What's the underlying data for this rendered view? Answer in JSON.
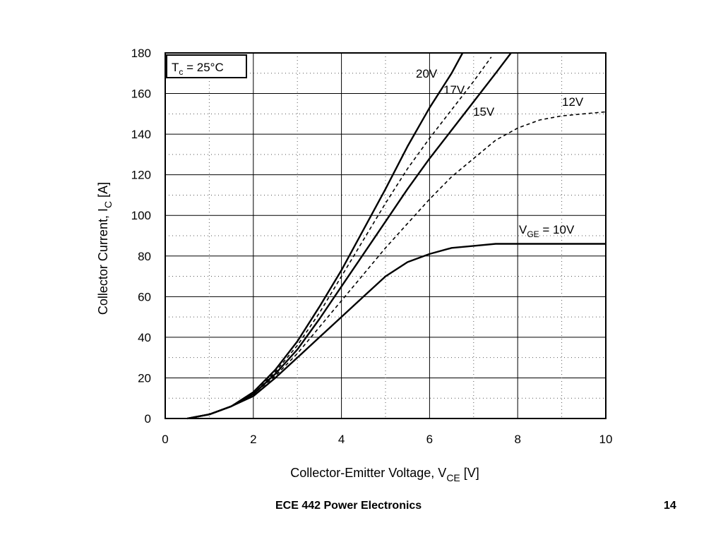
{
  "chart_data": {
    "type": "line",
    "xlabel": "Collector-Emitter Voltage, V",
    "xlabel_sub": "CE",
    "xlabel_unit": " [V]",
    "ylabel": "Collector Current, I",
    "ylabel_sub": "C",
    "ylabel_unit": " [A]",
    "xlim": [
      0,
      10
    ],
    "ylim": [
      0,
      180
    ],
    "xticks": [
      "0",
      "2",
      "4",
      "6",
      "8",
      "10"
    ],
    "yticks": [
      "0",
      "20",
      "40",
      "60",
      "80",
      "100",
      "120",
      "140",
      "160",
      "180"
    ],
    "grid": true,
    "annotation": {
      "main": "T",
      "sub": "c",
      "rest": " = 25°C"
    },
    "series": [
      {
        "name": "20V",
        "style": "solid",
        "x": [
          0.5,
          1.0,
          1.5,
          2.0,
          2.5,
          3.0,
          3.5,
          4.0,
          4.5,
          5.0,
          5.5,
          6.0,
          6.5,
          6.75
        ],
        "y": [
          0,
          2,
          6,
          13,
          24,
          38,
          55,
          73,
          93,
          113,
          134,
          153,
          170,
          180
        ]
      },
      {
        "name": "17V",
        "style": "dashed",
        "x": [
          0.5,
          1.0,
          1.5,
          2.0,
          2.5,
          3.0,
          3.5,
          4.0,
          4.5,
          5.0,
          5.5,
          6.0,
          6.5,
          7.0,
          7.4
        ],
        "y": [
          0,
          2,
          6,
          12,
          23,
          36,
          52,
          70,
          88,
          106,
          123,
          138,
          152,
          166,
          178
        ]
      },
      {
        "name": "15V",
        "style": "solid",
        "x": [
          0.5,
          1.0,
          1.5,
          2.0,
          2.5,
          3.0,
          3.5,
          4.0,
          4.5,
          5.0,
          5.5,
          6.0,
          6.5,
          7.0,
          7.5,
          7.85
        ],
        "y": [
          0,
          2,
          6,
          12,
          22,
          34,
          49,
          65,
          81,
          97,
          113,
          128,
          142,
          156,
          170,
          180
        ]
      },
      {
        "name": "12V",
        "style": "dashed",
        "x": [
          0.5,
          1.0,
          1.5,
          2.0,
          2.5,
          3.0,
          3.5,
          4.0,
          4.5,
          5.0,
          5.5,
          6.0,
          6.5,
          7.0,
          7.5,
          8.0,
          8.5,
          9.0,
          9.5,
          10.0
        ],
        "y": [
          0,
          2,
          6,
          12,
          21,
          32,
          45,
          58,
          71,
          84,
          96,
          108,
          119,
          128,
          137,
          143,
          147,
          149,
          150,
          151
        ]
      },
      {
        "name": "V",
        "name_sub": "GE",
        "name_rest": " = 10V",
        "style": "solid",
        "x": [
          0.5,
          1.0,
          1.5,
          2.0,
          2.5,
          3.0,
          3.5,
          4.0,
          4.5,
          5.0,
          5.5,
          6.0,
          6.5,
          7.0,
          7.5,
          8.0,
          9.0,
          10.0
        ],
        "y": [
          0,
          2,
          6,
          11,
          20,
          30,
          40,
          50,
          60,
          70,
          77,
          81,
          84,
          85,
          86,
          86,
          86,
          86
        ]
      }
    ]
  },
  "footer": {
    "title": "ECE 442 Power Electronics",
    "page_number": "14"
  }
}
